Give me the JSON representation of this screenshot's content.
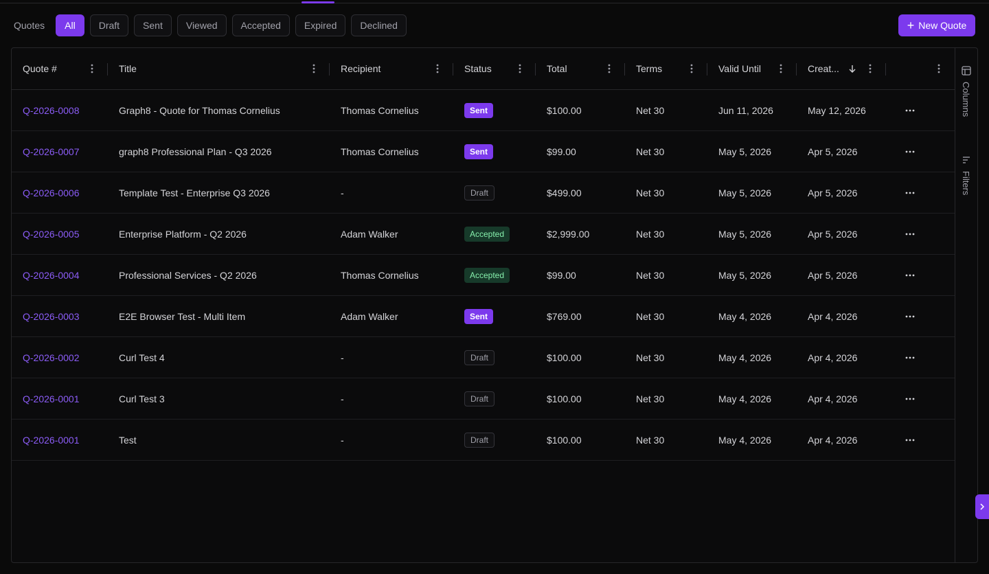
{
  "filters": {
    "label": "Quotes",
    "chips": [
      "All",
      "Draft",
      "Sent",
      "Viewed",
      "Accepted",
      "Expired",
      "Declined"
    ],
    "active": "All"
  },
  "new_quote_label": "New Quote",
  "table": {
    "columns": [
      "Quote #",
      "Title",
      "Recipient",
      "Status",
      "Total",
      "Terms",
      "Valid Until",
      "Creat..."
    ],
    "sorted_column": "Creat...",
    "sort_direction": "descending",
    "rows": [
      {
        "quote": "Q-2026-0008",
        "title": "Graph8 - Quote for Thomas Cornelius",
        "recipient": "Thomas Cornelius",
        "status": "Sent",
        "total": "$100.00",
        "terms": "Net 30",
        "valid_until": "Jun 11, 2026",
        "created": "May 12, 2026"
      },
      {
        "quote": "Q-2026-0007",
        "title": "graph8 Professional Plan - Q3 2026",
        "recipient": "Thomas Cornelius",
        "status": "Sent",
        "total": "$99.00",
        "terms": "Net 30",
        "valid_until": "May 5, 2026",
        "created": "Apr 5, 2026"
      },
      {
        "quote": "Q-2026-0006",
        "title": "Template Test - Enterprise Q3 2026",
        "recipient": "-",
        "status": "Draft",
        "total": "$499.00",
        "terms": "Net 30",
        "valid_until": "May 5, 2026",
        "created": "Apr 5, 2026"
      },
      {
        "quote": "Q-2026-0005",
        "title": "Enterprise Platform - Q2 2026",
        "recipient": "Adam Walker",
        "status": "Accepted",
        "total": "$2,999.00",
        "terms": "Net 30",
        "valid_until": "May 5, 2026",
        "created": "Apr 5, 2026"
      },
      {
        "quote": "Q-2026-0004",
        "title": "Professional Services - Q2 2026",
        "recipient": "Thomas Cornelius",
        "status": "Accepted",
        "total": "$99.00",
        "terms": "Net 30",
        "valid_until": "May 5, 2026",
        "created": "Apr 5, 2026"
      },
      {
        "quote": "Q-2026-0003",
        "title": "E2E Browser Test - Multi Item",
        "recipient": "Adam Walker",
        "status": "Sent",
        "total": "$769.00",
        "terms": "Net 30",
        "valid_until": "May 4, 2026",
        "created": "Apr 4, 2026"
      },
      {
        "quote": "Q-2026-0002",
        "title": "Curl Test 4",
        "recipient": "-",
        "status": "Draft",
        "total": "$100.00",
        "terms": "Net 30",
        "valid_until": "May 4, 2026",
        "created": "Apr 4, 2026"
      },
      {
        "quote": "Q-2026-0001",
        "title": "Curl Test 3",
        "recipient": "-",
        "status": "Draft",
        "total": "$100.00",
        "terms": "Net 30",
        "valid_until": "May 4, 2026",
        "created": "Apr 4, 2026"
      },
      {
        "quote": "Q-2026-0001",
        "title": "Test",
        "recipient": "-",
        "status": "Draft",
        "total": "$100.00",
        "terms": "Net 30",
        "valid_until": "May 4, 2026",
        "created": "Apr 4, 2026"
      }
    ]
  },
  "sidebar": {
    "columns_label": "Columns",
    "filters_label": "Filters"
  },
  "icons": {
    "new_quote": "plus-icon",
    "column_menu": "kebab-vertical-icon",
    "row_menu": "ellipsis-horizontal-icon",
    "sort": "arrow-down-icon",
    "columns_panel": "table-columns-icon",
    "filters_panel": "filter-lines-icon",
    "expand": "chevron-right-icon"
  },
  "colors": {
    "accent": "#7c3aed",
    "link": "#8b5cf6",
    "accepted_bg": "#173a2a",
    "accepted_text": "#86efac",
    "background": "#0a0a0a"
  }
}
